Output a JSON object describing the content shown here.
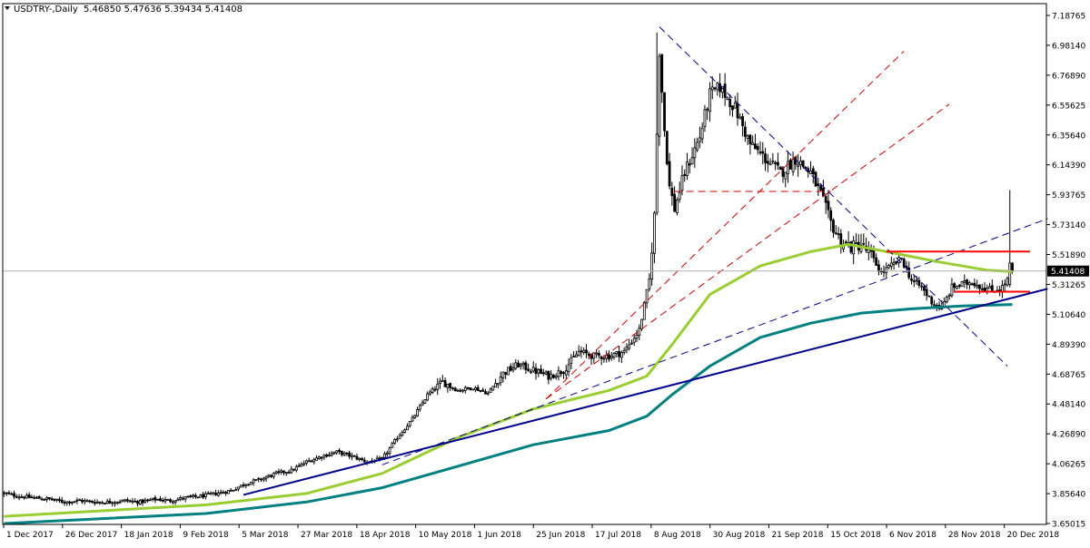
{
  "header": {
    "symbol_label": "USDTRY-,Daily",
    "ohlc_label": "5.46850 5.47636 5.39434 5.41408"
  },
  "colors": {
    "background": "#ffffff",
    "axis": "#000000",
    "candle_up": "#ffffff",
    "candle_down": "#000000",
    "ma_fast": "#9acd32",
    "ma_slow": "#008080",
    "trendline_solid": "#00008b",
    "trendline_dashed": "#00008b",
    "fan_lines": "#cc0000",
    "level_lines": "#ff0000",
    "price_tag_bg": "#000000",
    "price_tag_text": "#ffffff"
  },
  "chart_data": {
    "type": "candlestick",
    "symbol": "USDTRY-",
    "timeframe": "Daily",
    "ylim": [
      3.65,
      7.2
    ],
    "price_ticks": [
      "7.18765",
      "6.98140",
      "6.76890",
      "6.55625",
      "6.35640",
      "6.14390",
      "5.93765",
      "5.73140",
      "5.51890",
      "5.31265",
      "5.10640",
      "4.89390",
      "4.68765",
      "4.48140",
      "4.26890",
      "4.06265",
      "3.85640",
      "3.65015"
    ],
    "date_ticks": [
      "1 Dec 2017",
      "26 Dec 2017",
      "18 Jan 2018",
      "9 Feb 2018",
      "5 Mar 2018",
      "27 Mar 2018",
      "18 Apr 2018",
      "10 May 2018",
      "1 Jun 2018",
      "25 Jun 2018",
      "17 Jul 2018",
      "8 Aug 2018",
      "30 Aug 2018",
      "21 Sep 2018",
      "15 Oct 2018",
      "6 Nov 2018",
      "28 Nov 2018",
      "20 Dec 2018"
    ],
    "current_price": "5.41408",
    "close_trajectory": [
      [
        0,
        3.86
      ],
      [
        6,
        3.84
      ],
      [
        12,
        3.83
      ],
      [
        18,
        3.82
      ],
      [
        24,
        3.8
      ],
      [
        30,
        3.81
      ],
      [
        36,
        3.8
      ],
      [
        42,
        3.8
      ],
      [
        48,
        3.81
      ],
      [
        54,
        3.8
      ],
      [
        60,
        3.82
      ],
      [
        66,
        3.81
      ],
      [
        72,
        3.83
      ],
      [
        78,
        3.84
      ],
      [
        84,
        3.86
      ],
      [
        90,
        3.88
      ],
      [
        96,
        3.93
      ],
      [
        102,
        3.96
      ],
      [
        108,
        4.0
      ],
      [
        114,
        4.02
      ],
      [
        120,
        4.08
      ],
      [
        126,
        4.12
      ],
      [
        132,
        4.15
      ],
      [
        138,
        4.12
      ],
      [
        144,
        4.08
      ],
      [
        150,
        4.1
      ],
      [
        156,
        4.25
      ],
      [
        162,
        4.38
      ],
      [
        168,
        4.55
      ],
      [
        174,
        4.64
      ],
      [
        180,
        4.58
      ],
      [
        186,
        4.6
      ],
      [
        192,
        4.56
      ],
      [
        198,
        4.7
      ],
      [
        204,
        4.76
      ],
      [
        210,
        4.72
      ],
      [
        216,
        4.68
      ],
      [
        222,
        4.72
      ],
      [
        228,
        4.85
      ],
      [
        234,
        4.82
      ],
      [
        240,
        4.82
      ],
      [
        246,
        4.85
      ],
      [
        252,
        5.0
      ],
      [
        256,
        5.35
      ],
      [
        258,
        5.8
      ],
      [
        260,
        6.95
      ],
      [
        262,
        6.4
      ],
      [
        264,
        6.0
      ],
      [
        266,
        5.85
      ],
      [
        270,
        6.1
      ],
      [
        276,
        6.35
      ],
      [
        280,
        6.65
      ],
      [
        284,
        6.7
      ],
      [
        290,
        6.55
      ],
      [
        296,
        6.3
      ],
      [
        302,
        6.2
      ],
      [
        308,
        6.1
      ],
      [
        314,
        6.2
      ],
      [
        320,
        6.1
      ],
      [
        324,
        5.95
      ],
      [
        328,
        5.75
      ],
      [
        332,
        5.62
      ],
      [
        336,
        5.58
      ],
      [
        340,
        5.6
      ],
      [
        344,
        5.52
      ],
      [
        348,
        5.4
      ],
      [
        352,
        5.45
      ],
      [
        356,
        5.5
      ],
      [
        360,
        5.35
      ],
      [
        364,
        5.3
      ],
      [
        368,
        5.2
      ],
      [
        372,
        5.15
      ],
      [
        376,
        5.3
      ],
      [
        380,
        5.32
      ],
      [
        384,
        5.34
      ],
      [
        388,
        5.3
      ],
      [
        392,
        5.28
      ],
      [
        396,
        5.3
      ],
      [
        400,
        5.41
      ]
    ],
    "wick_extremes": {
      "high": 7.08,
      "low_dec": 5.14,
      "spike_dec": 5.98
    },
    "series": [
      {
        "name": "",
        "type": "moving_average",
        "values": [
          [
            0,
            3.7
          ],
          [
            80,
            3.78
          ],
          [
            120,
            3.86
          ],
          [
            150,
            4.0
          ],
          [
            180,
            4.25
          ],
          [
            210,
            4.45
          ],
          [
            240,
            4.58
          ],
          [
            255,
            4.68
          ],
          [
            265,
            4.9
          ],
          [
            280,
            5.25
          ],
          [
            300,
            5.45
          ],
          [
            320,
            5.55
          ],
          [
            335,
            5.6
          ],
          [
            350,
            5.55
          ],
          [
            370,
            5.48
          ],
          [
            390,
            5.42
          ],
          [
            400,
            5.41
          ]
        ]
      },
      {
        "name": "",
        "type": "moving_average",
        "values": [
          [
            0,
            3.65
          ],
          [
            80,
            3.72
          ],
          [
            120,
            3.8
          ],
          [
            150,
            3.9
          ],
          [
            180,
            4.05
          ],
          [
            210,
            4.2
          ],
          [
            240,
            4.3
          ],
          [
            255,
            4.4
          ],
          [
            265,
            4.55
          ],
          [
            280,
            4.75
          ],
          [
            300,
            4.95
          ],
          [
            320,
            5.05
          ],
          [
            340,
            5.12
          ],
          [
            360,
            5.15
          ],
          [
            380,
            5.17
          ],
          [
            400,
            5.18
          ]
        ]
      }
    ],
    "trendlines": [
      {
        "style": "solid",
        "from": [
          95,
          3.85
        ],
        "to": [
          414,
          5.29
        ]
      },
      {
        "style": "dashed",
        "from": [
          150,
          4.06
        ],
        "to": [
          414,
          5.78
        ]
      },
      {
        "style": "dashed",
        "from": [
          260,
          7.12
        ],
        "to": [
          398,
          4.75
        ]
      }
    ],
    "fan_lines": [
      {
        "from": [
          215,
          4.52
        ],
        "to": [
          357,
          6.95
        ]
      },
      {
        "from": [
          215,
          4.52
        ],
        "to": [
          375,
          6.58
        ]
      }
    ],
    "levels": [
      {
        "from": [
          266,
          5.97
        ],
        "to": [
          328,
          5.97
        ],
        "style": "dashed"
      },
      {
        "from": [
          350,
          5.55
        ],
        "to": [
          407,
          5.55
        ],
        "style": "solid"
      },
      {
        "from": [
          377,
          5.27
        ],
        "to": [
          407,
          5.27
        ],
        "style": "solid"
      }
    ],
    "grid": false
  }
}
